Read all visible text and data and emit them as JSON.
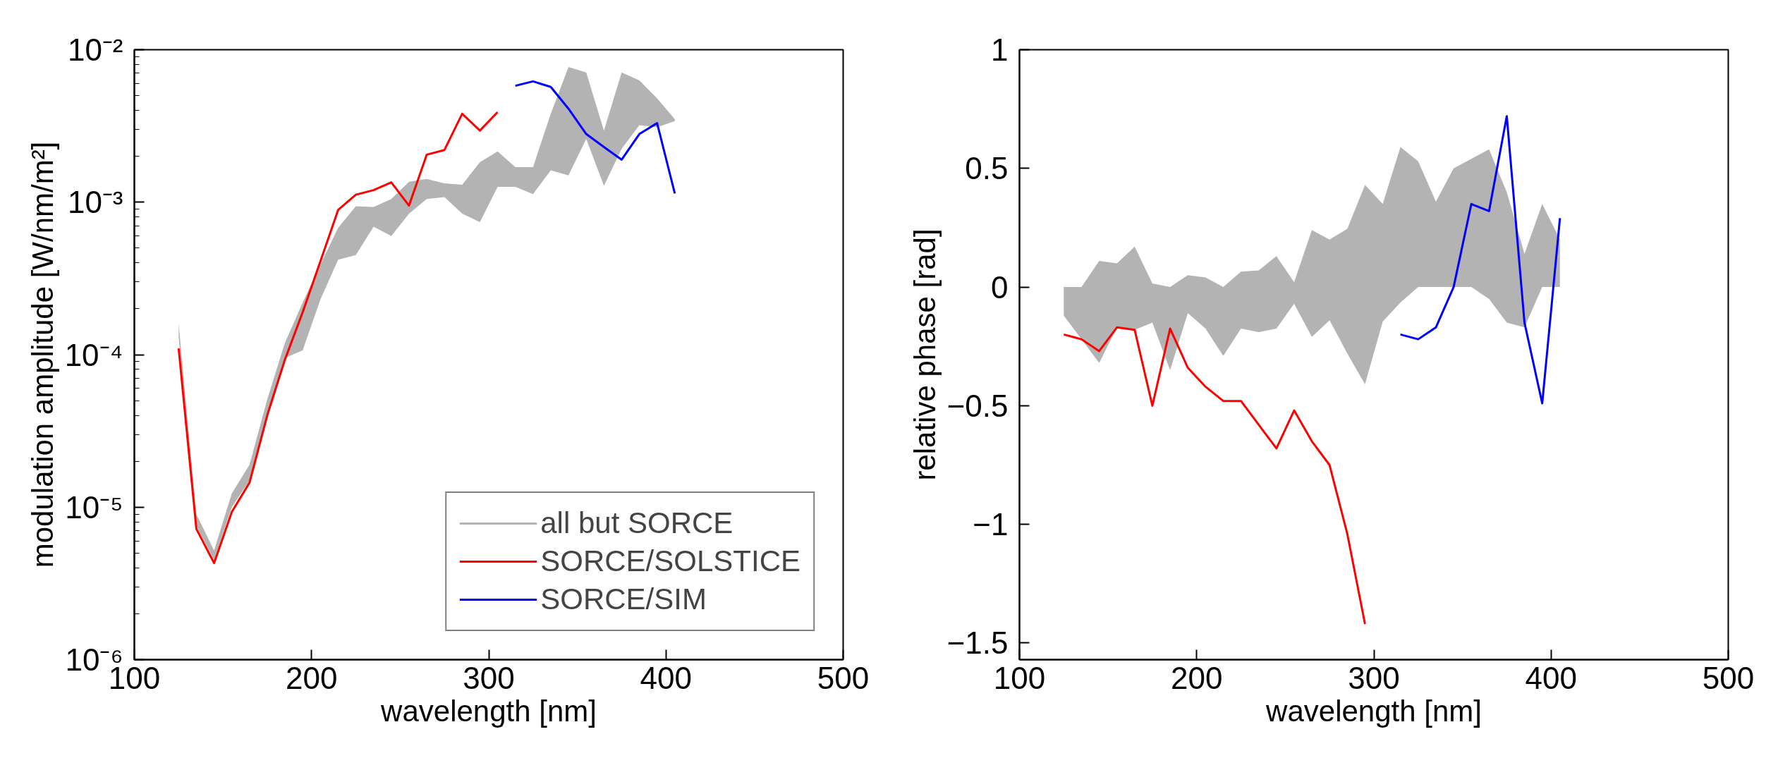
{
  "chart_data": [
    {
      "type": "line",
      "xlabel": "wavelength [nm]",
      "ylabel": "modulation amplitude [W/nm/m²]",
      "log": "y",
      "legend": "bottom right",
      "grid": false,
      "xlim": [
        100,
        500
      ],
      "xticks": [
        100,
        200,
        300,
        400,
        500
      ],
      "ylim": [
        1e-06,
        0.01
      ],
      "yticks": [
        {
          "value": 1e-06,
          "label": "10⁻⁶"
        },
        {
          "value": 1e-05,
          "label": "10⁻⁵"
        },
        {
          "value": 0.0001,
          "label": "10⁻⁴"
        },
        {
          "value": 0.001,
          "label": "10⁻³"
        },
        {
          "value": 0.01,
          "label": "10⁻²"
        }
      ],
      "series": [
        {
          "name": "all but SORCE",
          "color": "#b3b3b3",
          "x": [
            125,
            135,
            145,
            155,
            165,
            175,
            185,
            195,
            205,
            215,
            225,
            235,
            245,
            255,
            265,
            275,
            285,
            295,
            305,
            315,
            325,
            335,
            345,
            355,
            365,
            375,
            385,
            395,
            405
          ],
          "values": [
            null,
            null,
            null,
            null,
            null,
            null,
            null,
            null,
            null,
            null,
            null,
            null,
            null,
            null,
            null,
            null,
            null,
            null,
            null,
            null,
            null,
            null,
            null,
            null,
            null,
            null,
            null,
            null,
            null
          ],
          "upper": [
            0.00016,
            9e-06,
            5.2e-06,
            1.23e-05,
            1.9e-05,
            5.1e-05,
            0.00012,
            0.00022,
            0.00039,
            0.00068,
            0.00094,
            0.00093,
            0.00105,
            0.00136,
            0.00142,
            0.00133,
            0.0013,
            0.00183,
            0.00215,
            0.0017,
            0.0017,
            0.0038,
            0.0077,
            0.0071,
            0.00295,
            0.0071,
            0.0063,
            0.0048,
            0.0035
          ],
          "lower": [
            0.00013,
            7.5e-06,
            4.5e-06,
            1e-05,
            1.5e-05,
            4e-05,
            9.5e-05,
            0.000107,
            0.00023,
            0.00042,
            0.00045,
            0.00069,
            0.0006,
            0.00084,
            0.00105,
            0.00108,
            0.00084,
            0.00074,
            0.00126,
            0.00126,
            0.00113,
            0.00162,
            0.0015,
            0.0026,
            0.00128,
            0.00224,
            0.0032,
            0.0031,
            0.0034
          ]
        },
        {
          "name": "SORCE/SOLSTICE",
          "color": "#ff0000",
          "x": [
            125,
            135,
            145,
            155,
            165,
            175,
            185,
            195,
            205,
            215,
            225,
            235,
            245,
            255,
            265,
            275,
            285,
            295,
            305
          ],
          "values": [
            0.00011,
            7.2e-06,
            4.3e-06,
            9.3e-06,
            1.45e-05,
            4e-05,
            9.3e-05,
            0.00019,
            0.00041,
            0.00089,
            0.00112,
            0.0012,
            0.00135,
            0.00095,
            0.00205,
            0.0022,
            0.0038,
            0.00295,
            0.0039
          ]
        },
        {
          "name": "SORCE/SIM",
          "color": "#0000ff",
          "x": [
            315,
            325,
            335,
            345,
            355,
            365,
            375,
            385,
            395,
            405
          ],
          "values": [
            0.0058,
            0.0062,
            0.0057,
            0.0041,
            0.0028,
            0.0023,
            0.0019,
            0.0028,
            0.0033,
            0.00114
          ]
        }
      ]
    },
    {
      "type": "line",
      "xlabel": "wavelength [nm]",
      "ylabel": "relative phase [rad]",
      "legend": false,
      "grid": false,
      "xlim": [
        100,
        500
      ],
      "xticks": [
        100,
        200,
        300,
        400,
        500
      ],
      "ylim": [
        -1.57,
        1
      ],
      "yticks": [
        {
          "value": -1.5,
          "label": "−1.5"
        },
        {
          "value": -1,
          "label": "−1"
        },
        {
          "value": -0.5,
          "label": "−0.5"
        },
        0,
        0.5,
        1
      ],
      "series": [
        {
          "color": "#b3b3b3",
          "x": [
            125,
            135,
            145,
            155,
            165,
            175,
            185,
            195,
            205,
            215,
            225,
            235,
            245,
            255,
            265,
            275,
            285,
            295,
            305,
            315,
            325,
            335,
            345,
            355,
            365,
            375,
            385,
            395,
            405
          ],
          "values": [
            null,
            null,
            null,
            null,
            null,
            null,
            null,
            null,
            null,
            null,
            null,
            null,
            null,
            null,
            null,
            null,
            null,
            null,
            null,
            null,
            null,
            null,
            null,
            null,
            null,
            null,
            null,
            null,
            null
          ],
          "upper": [
            0,
            0,
            0.11,
            0.1,
            0.17,
            0.015,
            0,
            0.05,
            0.04,
            0,
            0.065,
            0.07,
            0.13,
            0.02,
            0.24,
            0.2,
            0.245,
            0.43,
            0.35,
            0.59,
            0.53,
            0.36,
            0.5,
            0.54,
            0.58,
            0.4,
            0.14,
            0.35,
            0.2
          ],
          "lower": [
            -0.12,
            -0.22,
            -0.32,
            -0.17,
            -0.18,
            -0.15,
            -0.35,
            -0.11,
            -0.175,
            -0.29,
            -0.175,
            -0.19,
            -0.175,
            -0.07,
            -0.21,
            -0.14,
            -0.28,
            -0.41,
            -0.145,
            -0.065,
            0,
            0,
            0,
            0,
            -0.05,
            -0.15,
            -0.17,
            0,
            0
          ]
        },
        {
          "color": "#ff0000",
          "x": [
            125,
            135,
            145,
            155,
            165,
            175,
            185,
            195,
            205,
            215,
            225,
            235,
            245,
            255,
            265,
            275,
            285,
            295
          ],
          "values": [
            -0.2,
            -0.22,
            -0.27,
            -0.17,
            -0.18,
            -0.5,
            -0.175,
            -0.34,
            -0.42,
            -0.48,
            -0.48,
            -0.58,
            -0.68,
            -0.52,
            -0.65,
            -0.75,
            -1.04,
            -1.42
          ]
        },
        {
          "color": "#0000ff",
          "x": [
            315,
            325,
            335,
            345,
            355,
            365,
            375,
            385,
            395,
            405
          ],
          "values": [
            -0.2,
            -0.22,
            -0.17,
            0,
            0.35,
            0.32,
            0.72,
            -0.15,
            -0.49,
            0.29
          ]
        }
      ]
    }
  ]
}
